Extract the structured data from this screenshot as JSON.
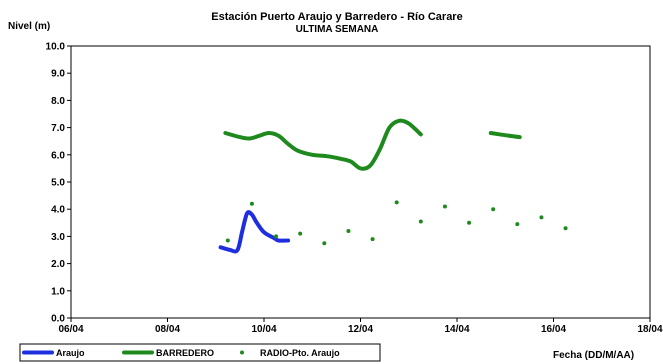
{
  "chart_data": {
    "type": "line",
    "title": "Estación Puerto Araujo y Barredero - Río Carare",
    "subtitle": "ULTIMA SEMANA",
    "ylabel": "Nivel (m)",
    "xlabel": "Fecha (DD/M/AA)",
    "ylim": [
      0,
      10
    ],
    "yticks": [
      "0.0",
      "1.0",
      "2.0",
      "3.0",
      "4.0",
      "5.0",
      "6.0",
      "7.0",
      "8.0",
      "9.0",
      "10.0"
    ],
    "xlim_days": [
      6,
      18
    ],
    "xticks": [
      {
        "day": 6,
        "label": "06/04"
      },
      {
        "day": 8,
        "label": "08/04"
      },
      {
        "day": 10,
        "label": "10/04"
      },
      {
        "day": 12,
        "label": "12/04"
      },
      {
        "day": 14,
        "label": "14/04"
      },
      {
        "day": 16,
        "label": "16/04"
      },
      {
        "day": 18,
        "label": "18/04"
      }
    ],
    "grid": false,
    "legend_position": "bottom-left",
    "series": [
      {
        "name": "Araujo",
        "style": "line",
        "color": "#1f2fe0",
        "segments": [
          [
            [
              9.1,
              2.6
            ],
            [
              9.3,
              2.5
            ],
            [
              9.45,
              2.5
            ],
            [
              9.55,
              3.2
            ],
            [
              9.65,
              3.85
            ],
            [
              9.75,
              3.8
            ],
            [
              9.85,
              3.5
            ],
            [
              10.0,
              3.15
            ],
            [
              10.2,
              2.95
            ],
            [
              10.3,
              2.85
            ],
            [
              10.5,
              2.85
            ]
          ]
        ]
      },
      {
        "name": "BARREDERO",
        "style": "line",
        "color": "#1e8a1e",
        "segments": [
          [
            [
              9.2,
              6.8
            ],
            [
              9.5,
              6.65
            ],
            [
              9.7,
              6.6
            ],
            [
              9.9,
              6.7
            ],
            [
              10.1,
              6.8
            ],
            [
              10.3,
              6.7
            ],
            [
              10.5,
              6.4
            ],
            [
              10.7,
              6.15
            ],
            [
              11.0,
              6.0
            ],
            [
              11.3,
              5.95
            ],
            [
              11.6,
              5.85
            ],
            [
              11.8,
              5.75
            ],
            [
              12.0,
              5.5
            ],
            [
              12.2,
              5.6
            ],
            [
              12.4,
              6.2
            ],
            [
              12.6,
              7.0
            ],
            [
              12.8,
              7.25
            ],
            [
              13.0,
              7.15
            ],
            [
              13.25,
              6.75
            ]
          ],
          [
            [
              14.7,
              6.8
            ],
            [
              15.0,
              6.72
            ],
            [
              15.3,
              6.65
            ]
          ]
        ]
      },
      {
        "name": "RADIO-Pto. Araujo",
        "style": "points",
        "color": "#1e8a1e",
        "points": [
          [
            9.25,
            2.85
          ],
          [
            9.75,
            4.2
          ],
          [
            10.25,
            3.0
          ],
          [
            10.75,
            3.1
          ],
          [
            11.25,
            2.75
          ],
          [
            11.75,
            3.2
          ],
          [
            12.25,
            2.9
          ],
          [
            12.75,
            4.25
          ],
          [
            13.25,
            3.55
          ],
          [
            13.75,
            4.1
          ],
          [
            14.25,
            3.5
          ],
          [
            14.75,
            4.0
          ],
          [
            15.25,
            3.45
          ],
          [
            15.75,
            3.7
          ],
          [
            16.25,
            3.3
          ]
        ]
      }
    ]
  }
}
